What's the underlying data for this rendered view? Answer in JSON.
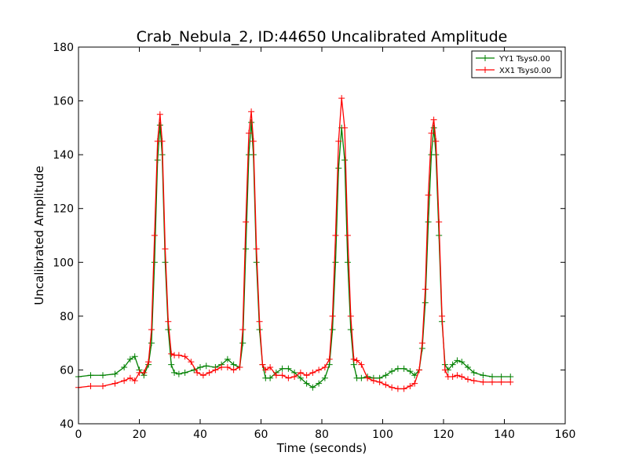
{
  "chart_data": {
    "type": "line",
    "title": "Crab_Nebula_2, ID:44650 Uncalibrated Amplitude",
    "xlabel": "Time (seconds)",
    "ylabel": "Uncalibrated Amplitude",
    "xlim": [
      0,
      160
    ],
    "ylim": [
      40,
      180
    ],
    "xticks": [
      0,
      20,
      40,
      60,
      80,
      100,
      120,
      140,
      160
    ],
    "yticks": [
      40,
      60,
      80,
      100,
      120,
      140,
      160,
      180
    ],
    "grid": false,
    "legend_position": "top-right",
    "series": [
      {
        "name": "YY1 Tsys0.00",
        "color": "#008000",
        "marker": "plus",
        "points": [
          [
            0,
            57.5
          ],
          [
            4,
            58
          ],
          [
            8,
            58
          ],
          [
            12,
            58.5
          ],
          [
            15,
            61
          ],
          [
            17,
            64
          ],
          [
            18.5,
            65
          ],
          [
            20,
            60
          ],
          [
            21.5,
            58
          ],
          [
            23,
            62
          ],
          [
            24,
            70
          ],
          [
            25,
            100
          ],
          [
            26,
            138
          ],
          [
            26.8,
            151
          ],
          [
            27.5,
            140
          ],
          [
            28.5,
            100
          ],
          [
            29.5,
            75
          ],
          [
            30.5,
            62
          ],
          [
            31.5,
            59
          ],
          [
            33,
            58.5
          ],
          [
            35,
            59
          ],
          [
            38,
            60
          ],
          [
            40,
            61
          ],
          [
            42,
            61.5
          ],
          [
            45,
            61
          ],
          [
            47,
            62
          ],
          [
            49,
            64
          ],
          [
            51,
            62
          ],
          [
            53,
            61
          ],
          [
            54,
            70
          ],
          [
            55,
            105
          ],
          [
            56,
            140
          ],
          [
            56.8,
            152
          ],
          [
            57.5,
            140
          ],
          [
            58.5,
            100
          ],
          [
            59.5,
            75
          ],
          [
            60.5,
            62
          ],
          [
            61.5,
            57
          ],
          [
            63,
            57
          ],
          [
            65,
            59
          ],
          [
            67,
            60.5
          ],
          [
            69,
            60.5
          ],
          [
            71,
            59
          ],
          [
            73,
            57
          ],
          [
            75,
            55
          ],
          [
            77,
            53.5
          ],
          [
            79,
            55
          ],
          [
            81,
            57
          ],
          [
            82.5,
            62
          ],
          [
            83.5,
            75
          ],
          [
            84.5,
            100
          ],
          [
            85.5,
            135
          ],
          [
            86.5,
            150
          ],
          [
            87.5,
            138
          ],
          [
            88.5,
            100
          ],
          [
            89.5,
            75
          ],
          [
            90.5,
            62
          ],
          [
            91.5,
            57
          ],
          [
            93,
            57
          ],
          [
            95,
            57.5
          ],
          [
            97,
            57
          ],
          [
            99,
            57
          ],
          [
            101,
            58
          ],
          [
            103,
            59.5
          ],
          [
            105,
            60.5
          ],
          [
            107,
            60.5
          ],
          [
            109,
            59.5
          ],
          [
            110.5,
            58
          ],
          [
            112,
            60
          ],
          [
            113,
            68
          ],
          [
            114,
            85
          ],
          [
            115,
            115
          ],
          [
            116,
            140
          ],
          [
            116.8,
            150
          ],
          [
            117.5,
            140
          ],
          [
            118.5,
            110
          ],
          [
            119.5,
            78
          ],
          [
            120.5,
            62
          ],
          [
            121.5,
            60
          ],
          [
            123,
            62
          ],
          [
            124.5,
            63.5
          ],
          [
            126,
            63
          ],
          [
            128,
            61
          ],
          [
            130,
            59
          ],
          [
            133,
            58
          ],
          [
            136,
            57.5
          ],
          [
            139,
            57.5
          ],
          [
            142,
            57.5
          ]
        ]
      },
      {
        "name": "XX1 Tsys0.00",
        "color": "#ff0000",
        "marker": "plus",
        "points": [
          [
            0,
            53.5
          ],
          [
            4,
            54
          ],
          [
            8,
            54
          ],
          [
            12,
            55
          ],
          [
            15,
            56
          ],
          [
            17,
            57
          ],
          [
            18.5,
            56
          ],
          [
            20,
            59
          ],
          [
            21.5,
            59
          ],
          [
            23,
            63
          ],
          [
            24,
            75
          ],
          [
            25,
            110
          ],
          [
            26,
            145
          ],
          [
            26.8,
            155
          ],
          [
            27.5,
            145
          ],
          [
            28.5,
            105
          ],
          [
            29.5,
            78
          ],
          [
            30.5,
            66
          ],
          [
            31.5,
            65.5
          ],
          [
            33,
            65.5
          ],
          [
            35,
            65
          ],
          [
            37,
            63
          ],
          [
            39,
            59
          ],
          [
            41,
            58
          ],
          [
            43,
            59
          ],
          [
            45,
            60
          ],
          [
            47,
            61
          ],
          [
            49,
            61
          ],
          [
            51,
            60
          ],
          [
            53,
            61
          ],
          [
            54,
            75
          ],
          [
            55,
            115
          ],
          [
            56,
            148
          ],
          [
            56.8,
            156
          ],
          [
            57.5,
            145
          ],
          [
            58.5,
            105
          ],
          [
            59.5,
            78
          ],
          [
            60.5,
            62
          ],
          [
            61.5,
            60
          ],
          [
            63,
            61
          ],
          [
            65,
            58
          ],
          [
            67,
            58
          ],
          [
            69,
            57
          ],
          [
            71,
            57.5
          ],
          [
            73,
            59
          ],
          [
            75,
            58
          ],
          [
            77,
            59
          ],
          [
            79,
            60
          ],
          [
            81,
            61
          ],
          [
            82.5,
            64
          ],
          [
            83.5,
            80
          ],
          [
            84.5,
            110
          ],
          [
            85.5,
            145
          ],
          [
            86.5,
            161
          ],
          [
            87.5,
            150
          ],
          [
            88.5,
            110
          ],
          [
            89.5,
            80
          ],
          [
            90.5,
            64
          ],
          [
            91.5,
            63.5
          ],
          [
            93,
            62
          ],
          [
            95,
            57
          ],
          [
            97,
            56
          ],
          [
            99,
            55.5
          ],
          [
            101,
            54.5
          ],
          [
            103,
            53.5
          ],
          [
            105,
            53
          ],
          [
            107,
            53
          ],
          [
            109,
            54
          ],
          [
            110.5,
            55
          ],
          [
            112,
            60
          ],
          [
            113,
            70
          ],
          [
            114,
            90
          ],
          [
            115,
            125
          ],
          [
            116,
            148
          ],
          [
            116.8,
            153
          ],
          [
            117.5,
            145
          ],
          [
            118.5,
            115
          ],
          [
            119.5,
            80
          ],
          [
            120.5,
            60
          ],
          [
            121.5,
            57.5
          ],
          [
            123,
            57.5
          ],
          [
            124.5,
            58
          ],
          [
            126,
            57.5
          ],
          [
            128,
            56.5
          ],
          [
            130,
            56
          ],
          [
            133,
            55.5
          ],
          [
            136,
            55.5
          ],
          [
            139,
            55.5
          ],
          [
            142,
            55.5
          ]
        ]
      }
    ]
  }
}
